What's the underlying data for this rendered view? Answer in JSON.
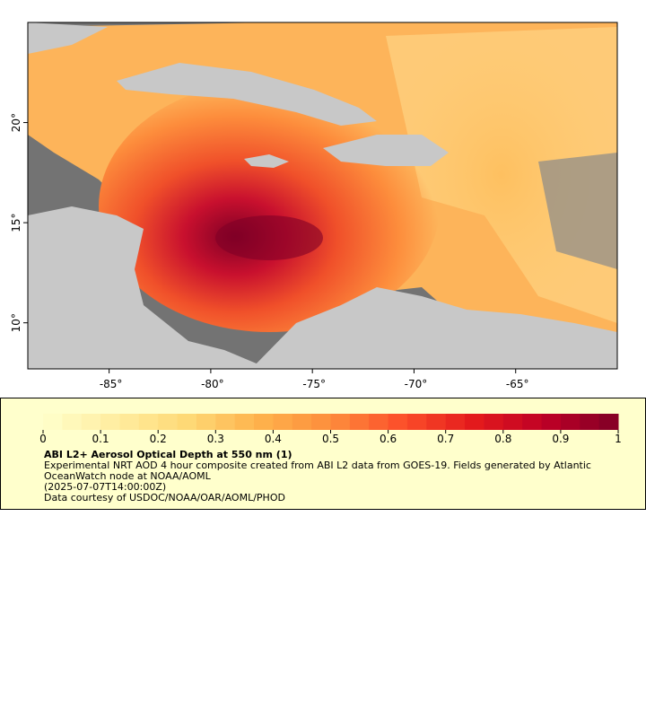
{
  "chart_data": {
    "type": "map",
    "xlim": [
      -89,
      -60
    ],
    "ylim": [
      7.7,
      25
    ],
    "xticks": [
      {
        "value": -85,
        "label": "-85°"
      },
      {
        "value": -80,
        "label": "-80°"
      },
      {
        "value": -75,
        "label": "-75°"
      },
      {
        "value": -70,
        "label": "-70°"
      },
      {
        "value": -65,
        "label": "-65°"
      }
    ],
    "yticks": [
      {
        "value": 10,
        "label": "10°"
      },
      {
        "value": 15,
        "label": "15°"
      },
      {
        "value": 20,
        "label": "20°"
      }
    ],
    "colorbar": {
      "title": "ABI L2+ Aerosol Optical Depth at 550 nm (1)",
      "lim": [
        0,
        1
      ],
      "ticks": [
        0,
        0.1,
        0.2,
        0.3,
        0.4,
        0.5,
        0.6,
        0.7,
        0.8,
        0.9,
        1
      ],
      "colormap": [
        "#ffffcc",
        "#ffeda0",
        "#fed976",
        "#feb24c",
        "#fd8d3c",
        "#fc4e2a",
        "#e31a1c",
        "#bd0026",
        "#800026"
      ]
    },
    "description": "Experimental NRT AOD 4 hour composite created from ABI L2 data from GOES-19. Fields generated by Atlantic OceanWatch node at NOAA/AOML",
    "time": "(2025-07-07T14:00:00Z)",
    "credit": "Data courtesy of USDOC/NOAA/OAR/AOML/PHOD"
  }
}
